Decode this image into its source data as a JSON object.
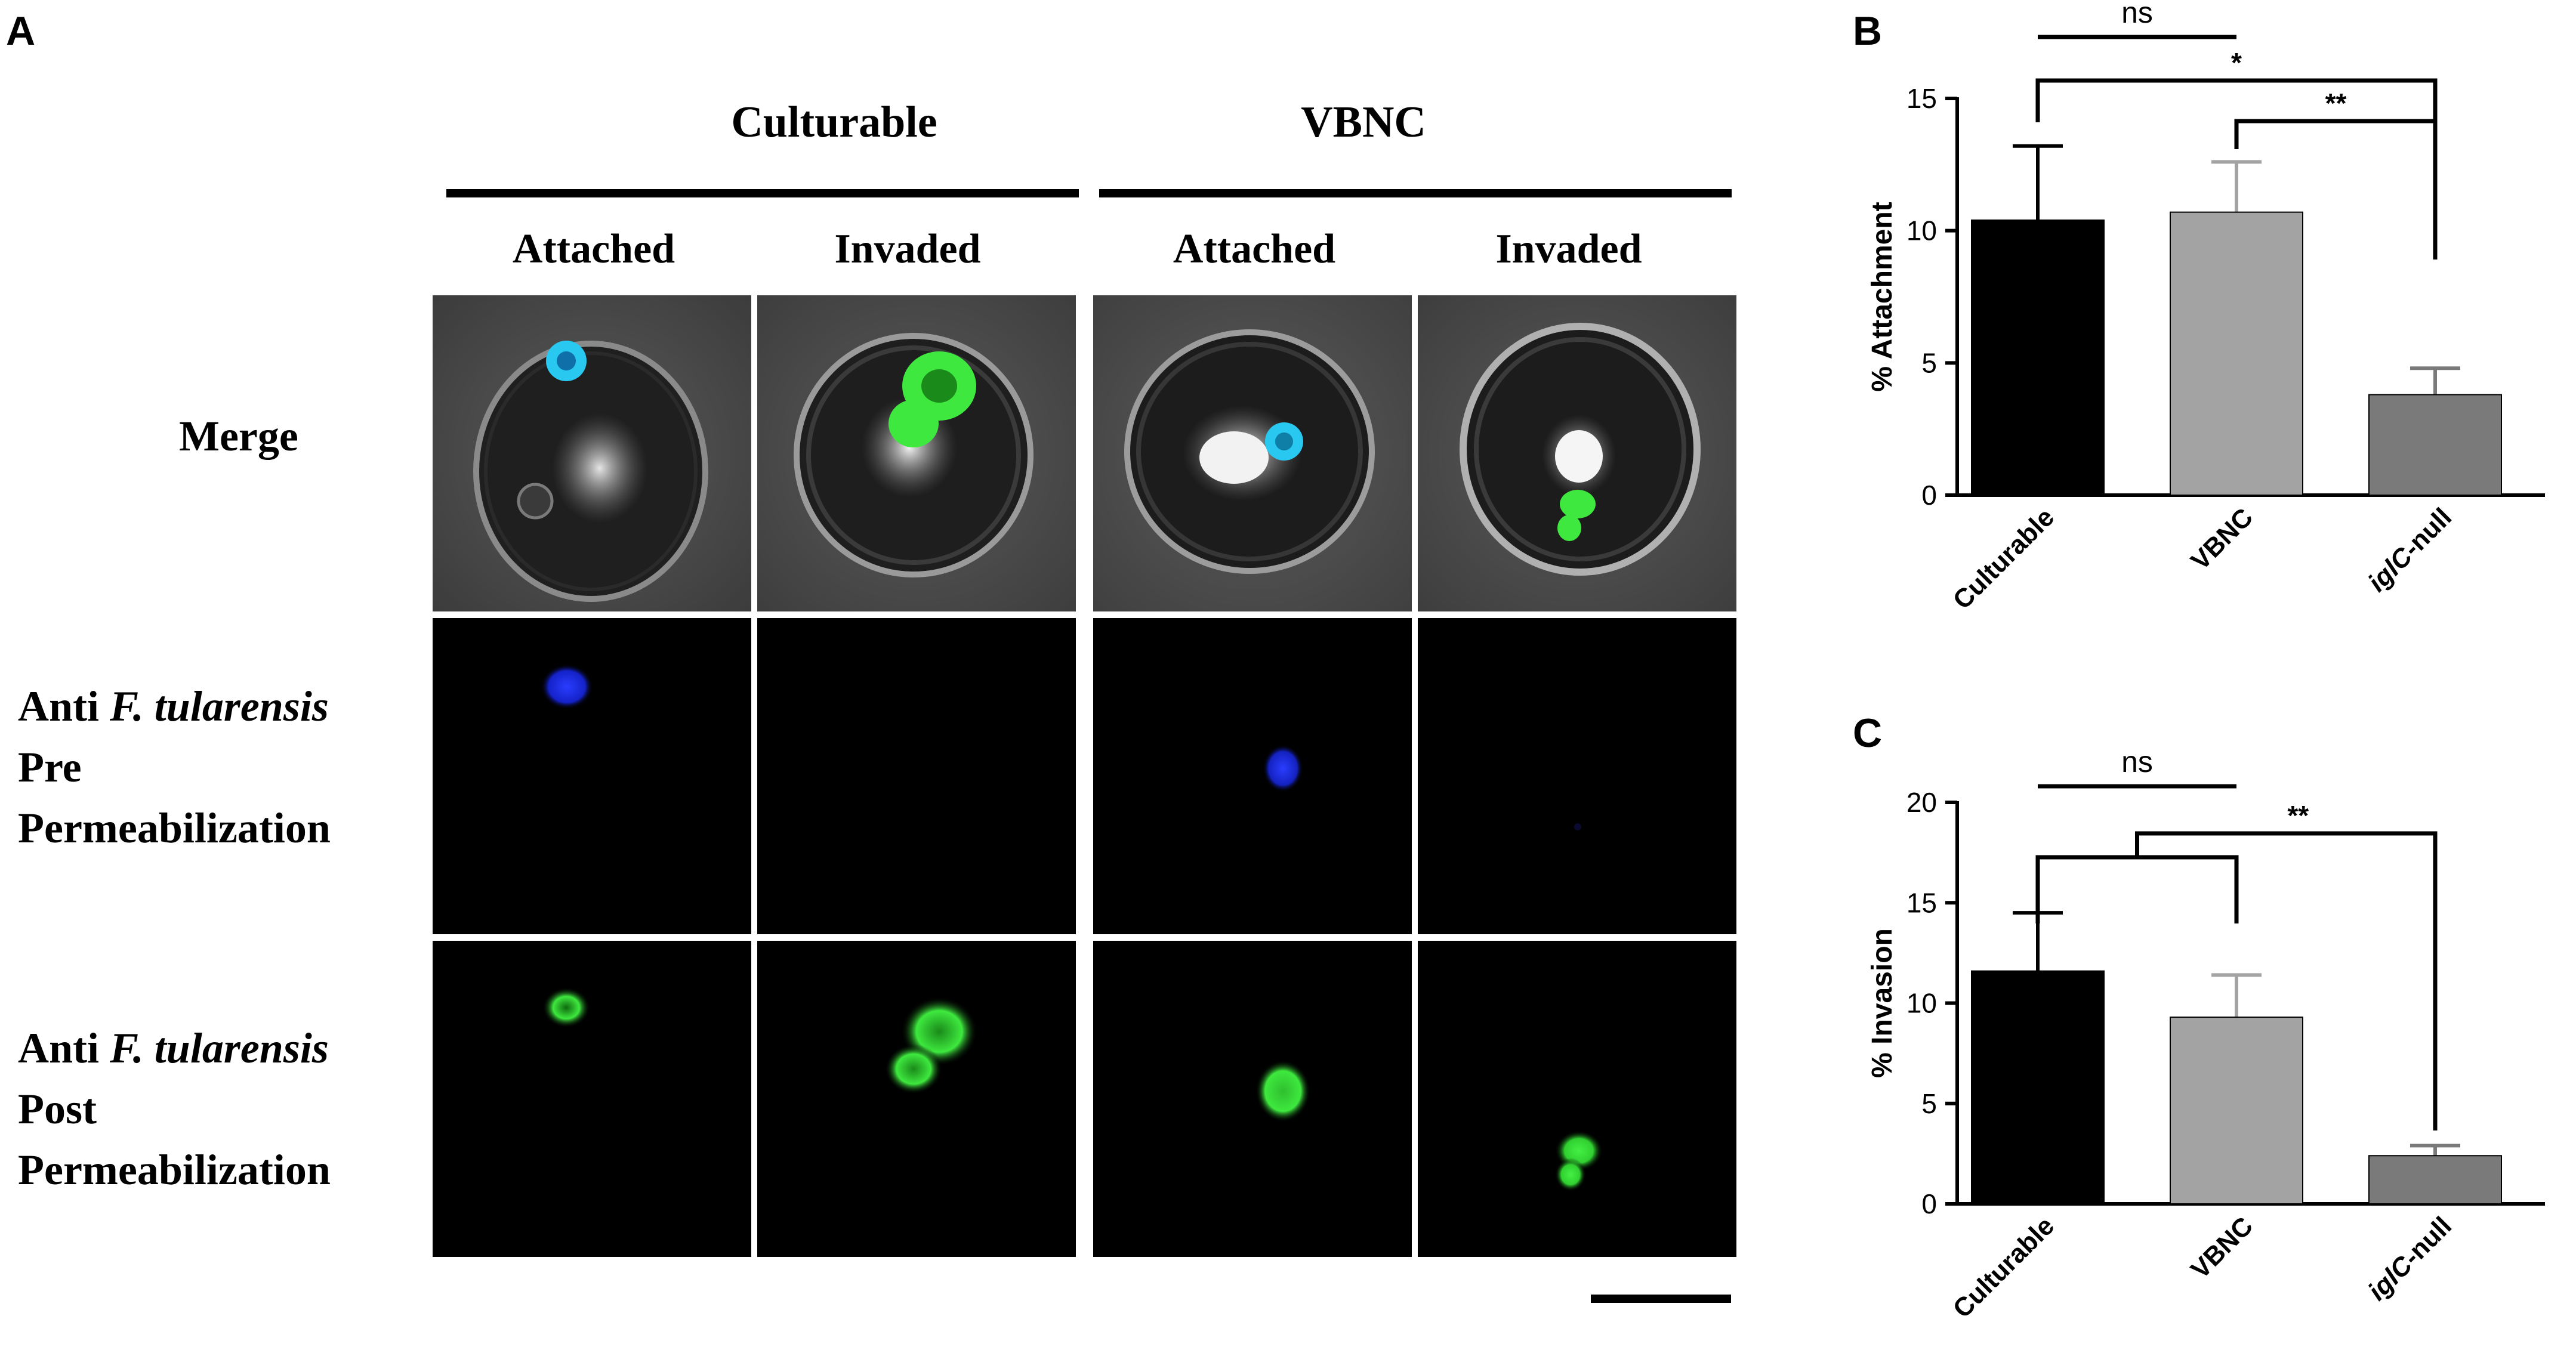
{
  "figure": {
    "panel_labels": {
      "a": "A",
      "b": "B",
      "c": "C"
    },
    "group_headers": [
      "Culturable",
      "VBNC"
    ],
    "column_headers": [
      "Attached",
      "Invaded",
      "Attached",
      "Invaded"
    ],
    "row_labels": [
      {
        "lines": [
          {
            "pre": "Merge",
            "it": "",
            "post": ""
          }
        ]
      },
      {
        "lines": [
          {
            "pre": "Anti ",
            "it": "F. tularensis",
            "post": ""
          },
          {
            "pre": "Pre",
            "it": "",
            "post": ""
          },
          {
            "pre": "Permeabilization",
            "it": "",
            "post": ""
          }
        ]
      },
      {
        "lines": [
          {
            "pre": "Anti ",
            "it": "F. tularensis",
            "post": ""
          },
          {
            "pre": "Post",
            "it": "",
            "post": ""
          },
          {
            "pre": "Permeabilization",
            "it": "",
            "post": ""
          }
        ]
      }
    ],
    "colors": {
      "pre_stain": "#1a2bff",
      "post_stain": "#2ee83a",
      "merge_cyan": "#29c8f0",
      "merge_green": "#3ee83e"
    }
  },
  "chart_data": [
    {
      "type": "bar",
      "panel": "B",
      "ylabel": "% Attachment",
      "xlabel": "",
      "title": "",
      "categories": [
        "Culturable",
        "VBNC",
        "iglC-null"
      ],
      "category_labels": [
        {
          "it": "",
          "post": "Culturable"
        },
        {
          "it": "",
          "post": "VBNC"
        },
        {
          "it": "iglC",
          "post": "-null"
        }
      ],
      "values": [
        10.4,
        10.7,
        3.8
      ],
      "errors": [
        2.8,
        1.9,
        1.0
      ],
      "bar_colors": [
        "#000000",
        "#a3a3a3",
        "#7a7a7a"
      ],
      "ylim": [
        0,
        15
      ],
      "yticks": [
        "0",
        "5",
        "10",
        "15"
      ],
      "significance": [
        {
          "from": 0,
          "to": 1,
          "label": "ns",
          "style": "flat"
        },
        {
          "from": 0,
          "to": 2,
          "label": "*",
          "style": "bracket"
        },
        {
          "from": 1,
          "to": 2,
          "label": "**",
          "style": "bracket"
        }
      ]
    },
    {
      "type": "bar",
      "panel": "C",
      "ylabel": "% Invasion",
      "xlabel": "",
      "title": "",
      "categories": [
        "Culturable",
        "VBNC",
        "iglC-null"
      ],
      "category_labels": [
        {
          "it": "",
          "post": "Culturable"
        },
        {
          "it": "",
          "post": "VBNC"
        },
        {
          "it": "iglC",
          "post": "-null"
        }
      ],
      "values": [
        11.6,
        9.3,
        2.4
      ],
      "errors": [
        2.9,
        2.1,
        0.5
      ],
      "bar_colors": [
        "#000000",
        "#a3a3a3",
        "#7a7a7a"
      ],
      "ylim": [
        0,
        20
      ],
      "yticks": [
        "0",
        "5",
        "10",
        "15",
        "20"
      ],
      "significance": [
        {
          "from": 0,
          "to": 1,
          "label": "ns",
          "style": "flat"
        },
        {
          "from": "0+1",
          "to": 2,
          "label": "**",
          "style": "grouped"
        }
      ]
    }
  ]
}
